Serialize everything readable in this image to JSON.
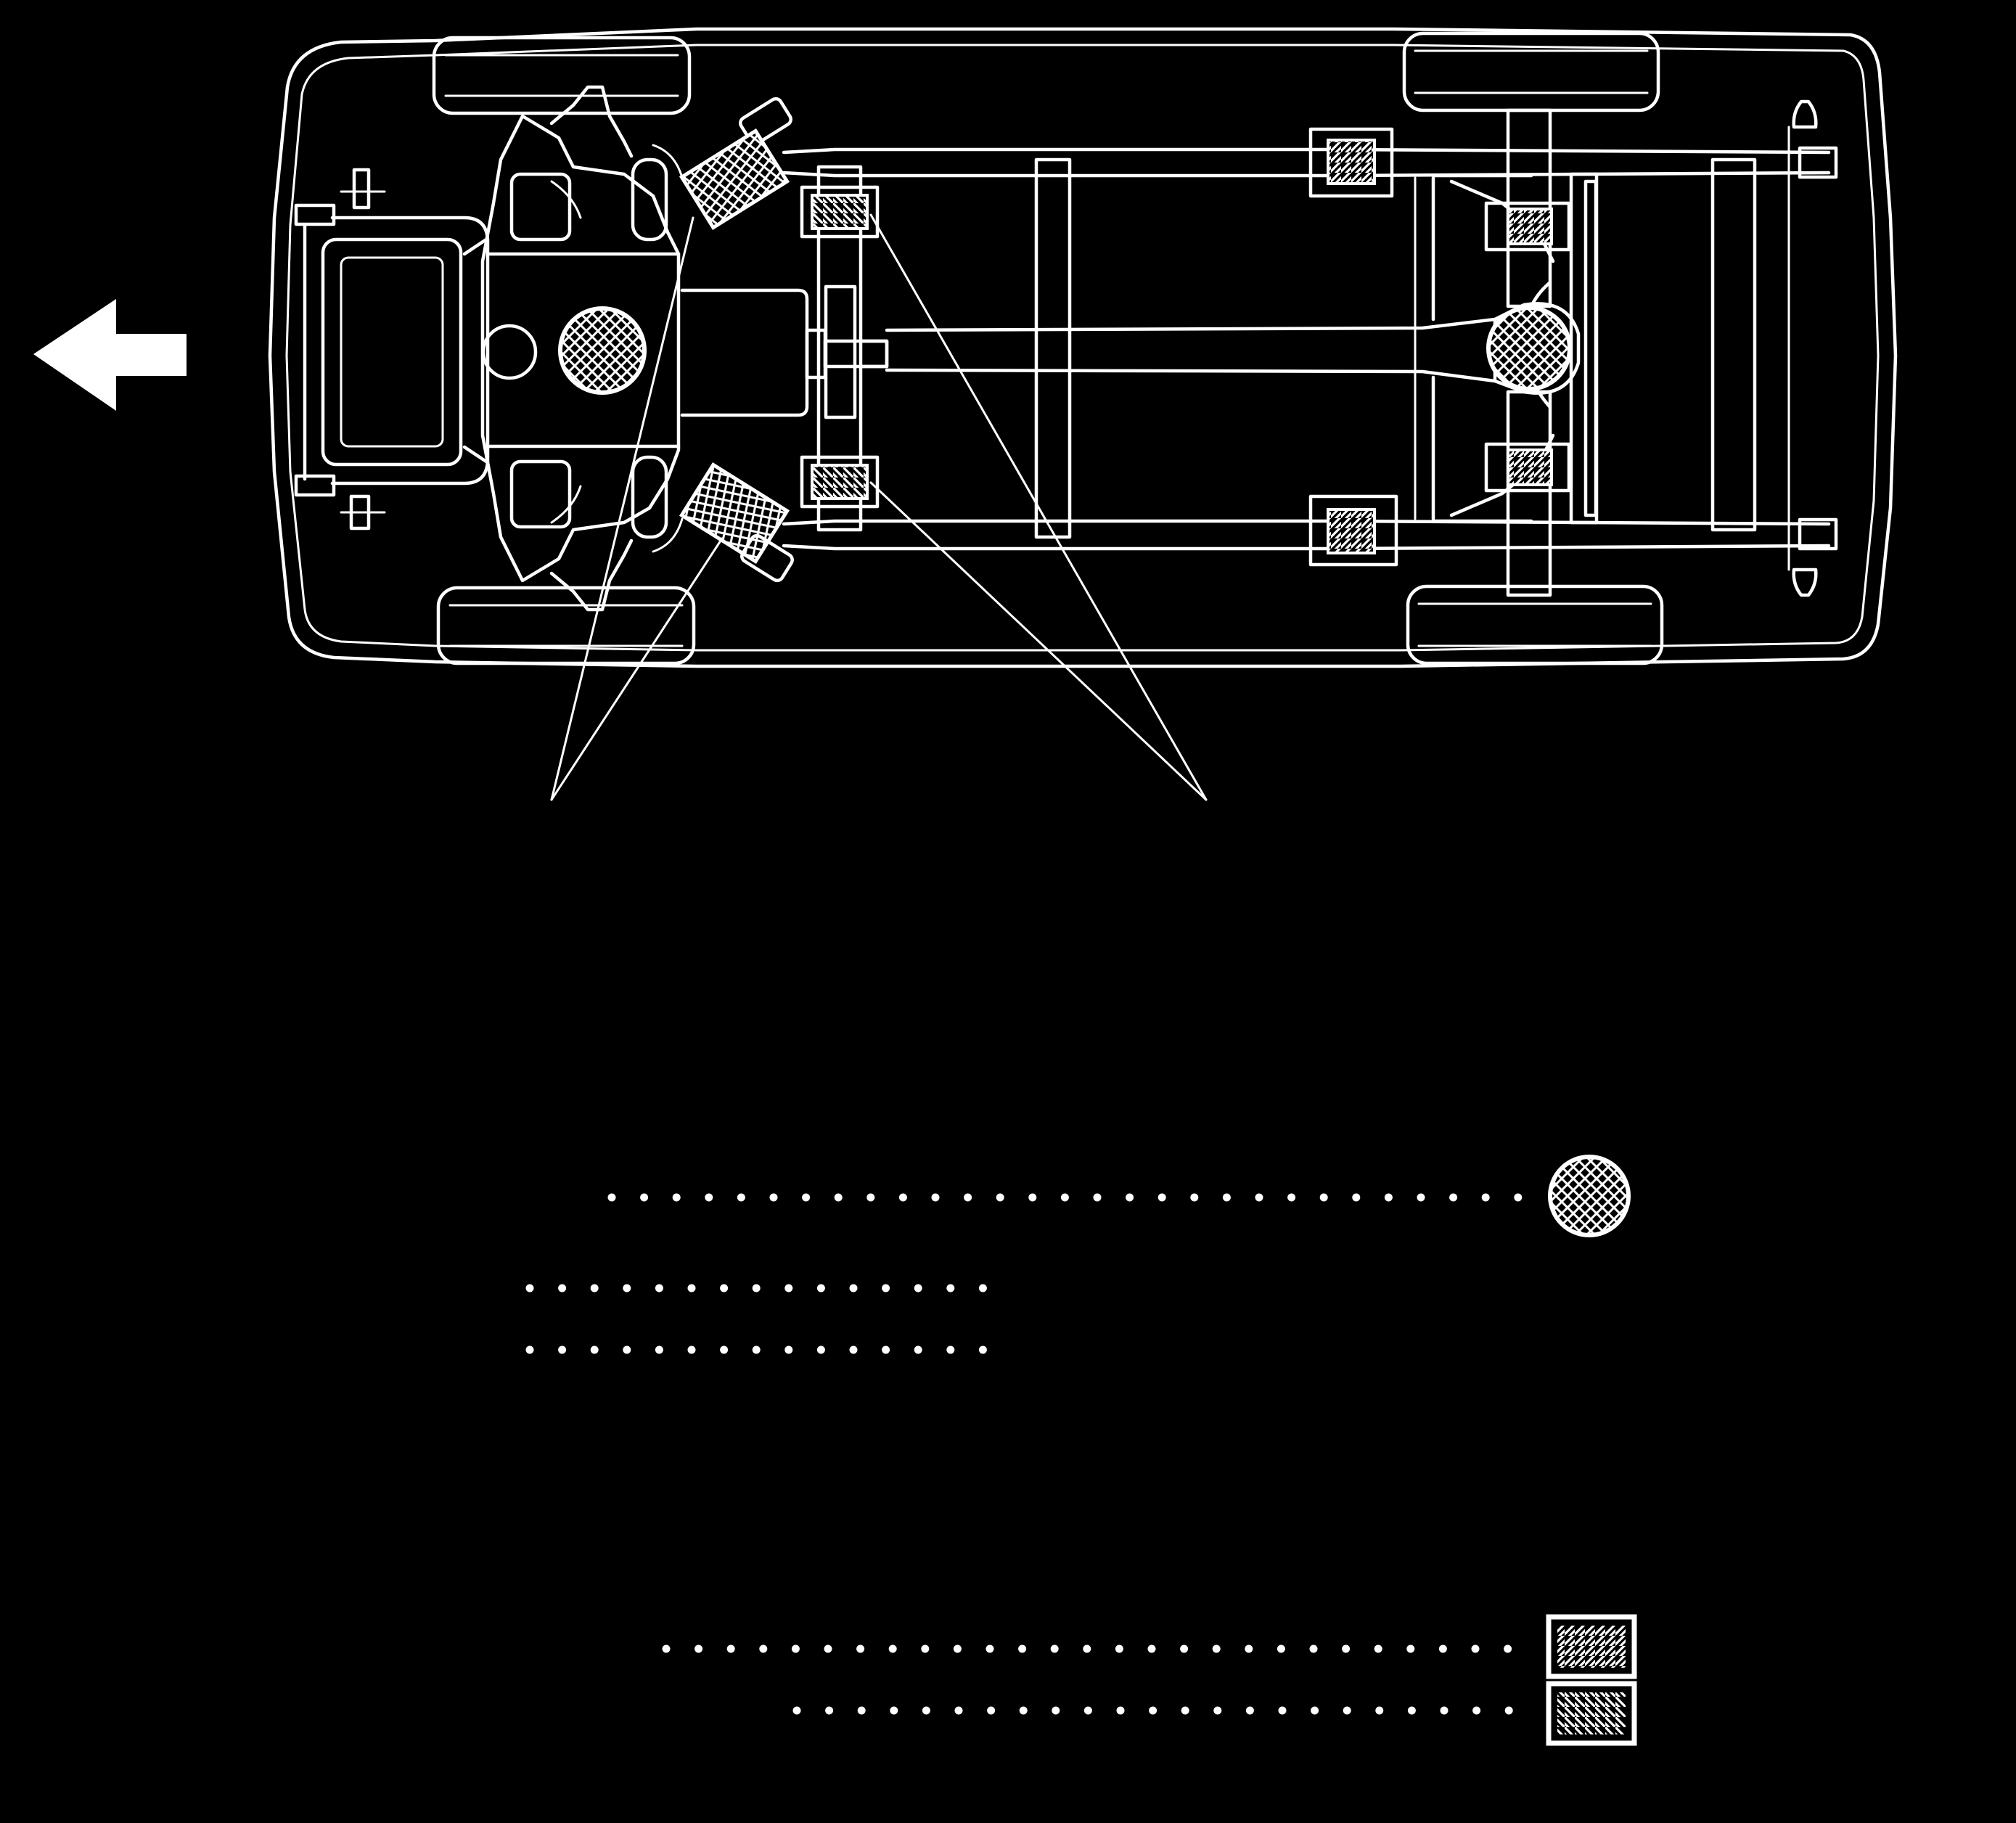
{
  "diagram": {
    "background_color": "#000000",
    "line_color": "#ffffff",
    "direction_arrow_icon": "arrow-left-icon",
    "lift_points": {
      "crosshatch_circle": "crosshatch-circle-icon",
      "crosshatch_rect": "crosshatch-rect-icon",
      "hatch_forward": "hatch-forward-icon",
      "hatch_back": "hatch-back-icon"
    },
    "legend": [
      {
        "symbol": "crosshatch-circle-icon",
        "label": ""
      },
      {
        "symbol": "none",
        "label": ""
      },
      {
        "symbol": "none",
        "label": ""
      },
      {
        "symbol": "hatch-forward-icon",
        "label": ""
      },
      {
        "symbol": "hatch-back-icon",
        "label": ""
      }
    ]
  }
}
